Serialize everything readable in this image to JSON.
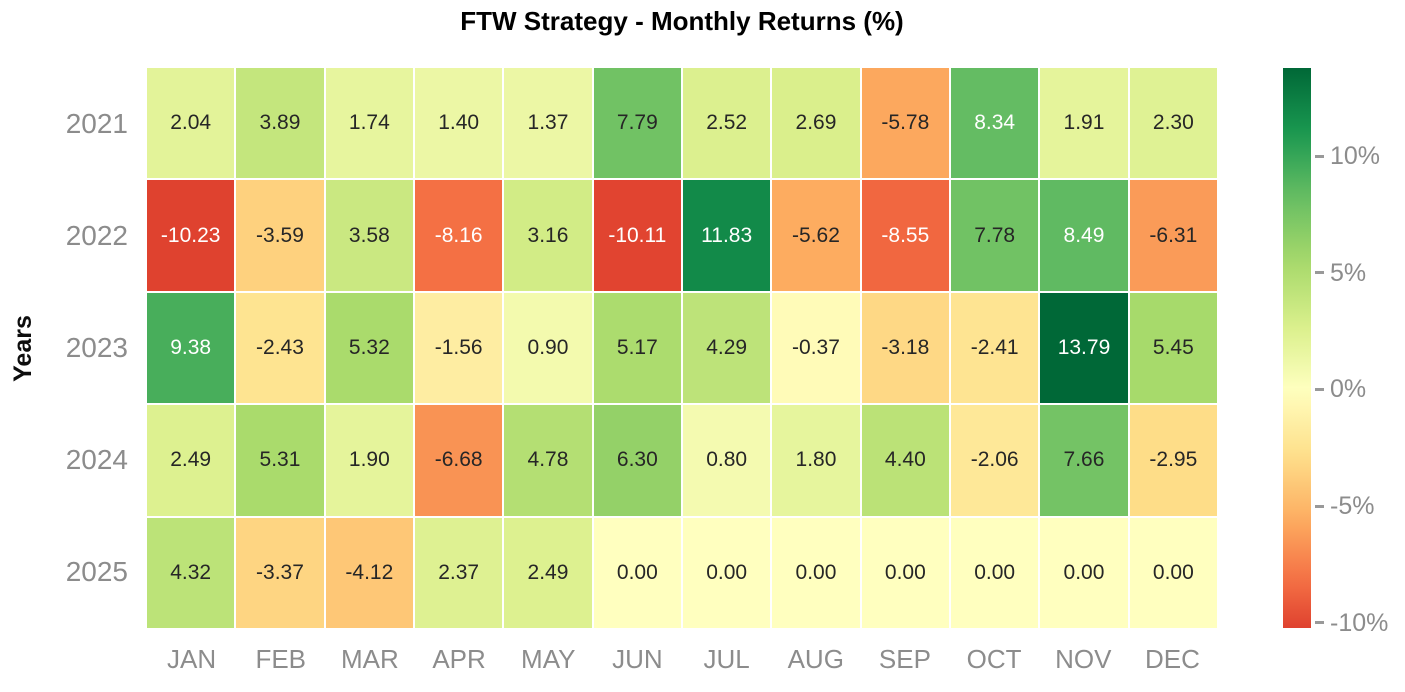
{
  "title": "FTW Strategy - Monthly Returns (%)",
  "ylabel": "Years",
  "chart_data": {
    "type": "heatmap",
    "title": "FTW Strategy - Monthly Returns (%)",
    "xlabel": "",
    "ylabel": "Years",
    "rows": [
      "2021",
      "2022",
      "2023",
      "2024",
      "2025"
    ],
    "columns": [
      "JAN",
      "FEB",
      "MAR",
      "APR",
      "MAY",
      "JUN",
      "JUL",
      "AUG",
      "SEP",
      "OCT",
      "NOV",
      "DEC"
    ],
    "values": [
      [
        2.04,
        3.89,
        1.74,
        1.4,
        1.37,
        7.79,
        2.52,
        2.69,
        -5.78,
        8.34,
        1.91,
        2.3
      ],
      [
        -10.23,
        -3.59,
        3.58,
        -8.16,
        3.16,
        -10.11,
        11.83,
        -5.62,
        -8.55,
        7.78,
        8.49,
        -6.31
      ],
      [
        9.38,
        -2.43,
        5.32,
        -1.56,
        0.9,
        5.17,
        4.29,
        -0.37,
        -3.18,
        -2.41,
        13.79,
        5.45
      ],
      [
        2.49,
        5.31,
        1.9,
        -6.68,
        4.78,
        6.3,
        0.8,
        1.8,
        4.4,
        -2.06,
        7.66,
        -2.95
      ],
      [
        4.32,
        -3.37,
        -4.12,
        2.37,
        2.49,
        0.0,
        0.0,
        0.0,
        0.0,
        0.0,
        0.0,
        0.0
      ]
    ],
    "value_decimals": 2,
    "colormap": "RdYlGn",
    "color_center": 0,
    "colorbar": {
      "position": "right",
      "vmax": 13.79,
      "vmin": -10.23,
      "ticks": [
        {
          "value": 10,
          "label": "10%"
        },
        {
          "value": 5,
          "label": "5%"
        },
        {
          "value": 0,
          "label": "0%"
        },
        {
          "value": -5,
          "label": "-5%"
        },
        {
          "value": -10,
          "label": "-10%"
        }
      ]
    },
    "grid": false
  },
  "colors": {
    "background": "#ffffff",
    "title_text": "#000000",
    "axis_label_text": "#0d0d0d",
    "tick_label_text": "#8c8c8c",
    "annotation_dark": "#262626",
    "annotation_light": "#ffffff",
    "cell_gap": "#ffffff",
    "cmap_max_green": "#006837",
    "cmap_mid_yellow": "#ffffbf",
    "cmap_min_red": "#df422f"
  }
}
